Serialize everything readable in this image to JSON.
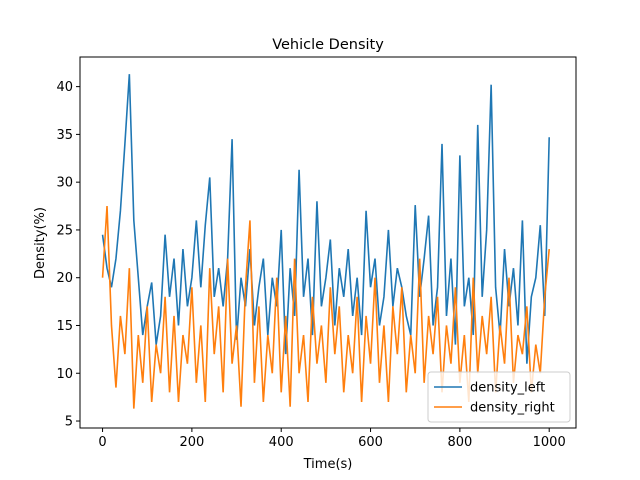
{
  "chart_data": {
    "type": "line",
    "title": "Vehicle Density",
    "xlabel": "Time(s)",
    "ylabel": "Density(%)",
    "x": [
      0,
      10,
      20,
      30,
      40,
      50,
      60,
      70,
      80,
      90,
      100,
      110,
      120,
      130,
      140,
      150,
      160,
      170,
      180,
      190,
      200,
      210,
      220,
      230,
      240,
      250,
      260,
      270,
      280,
      290,
      300,
      310,
      320,
      330,
      340,
      350,
      360,
      370,
      380,
      390,
      400,
      410,
      420,
      430,
      440,
      450,
      460,
      470,
      480,
      490,
      500,
      510,
      520,
      530,
      540,
      550,
      560,
      570,
      580,
      590,
      600,
      610,
      620,
      630,
      640,
      650,
      660,
      670,
      680,
      690,
      700,
      710,
      720,
      730,
      740,
      750,
      760,
      770,
      780,
      790,
      800,
      810,
      820,
      830,
      840,
      850,
      860,
      870,
      880,
      890,
      900,
      910,
      920,
      930,
      940,
      950,
      960,
      970,
      980,
      990,
      1000
    ],
    "series": [
      {
        "name": "density_left",
        "color": "#1f77b4",
        "values": [
          24.5,
          21,
          19,
          22,
          27,
          34,
          41.3,
          26,
          20,
          14,
          17,
          19.5,
          13,
          16,
          24.5,
          18,
          22,
          15,
          23,
          17,
          20,
          26,
          19,
          25.5,
          30.5,
          18,
          21,
          17,
          22,
          34.5,
          13.5,
          20,
          17,
          23,
          15,
          19,
          22,
          14,
          20,
          17,
          25,
          12,
          21,
          16,
          31.3,
          18,
          22,
          14,
          28,
          17,
          20,
          24,
          15,
          21,
          18,
          23,
          16,
          20,
          14,
          27,
          19,
          22,
          15,
          18,
          25,
          17,
          21,
          19,
          16,
          14,
          27.6,
          18,
          22,
          26.5,
          15,
          19,
          34,
          16,
          22,
          13,
          32.8,
          17,
          20,
          14,
          36,
          18,
          25,
          40.2,
          19,
          14,
          23,
          17,
          21,
          15,
          26,
          11,
          18,
          20,
          25.5,
          16,
          34.7
        ]
      },
      {
        "name": "density_right",
        "color": "#ff7f0e",
        "values": [
          20,
          27.5,
          15,
          8.5,
          16,
          12,
          21,
          6.3,
          14,
          9,
          17,
          7,
          13,
          10,
          18,
          8,
          16,
          7,
          14,
          11,
          19,
          9,
          15,
          7,
          21,
          12,
          17,
          8,
          22,
          11,
          15,
          6.5,
          19,
          26,
          9,
          17,
          7,
          14,
          10,
          20,
          8,
          16,
          6.5,
          22,
          10,
          14,
          7,
          18,
          11,
          15,
          9,
          19,
          12,
          17,
          8,
          14,
          10,
          18,
          7,
          16,
          11,
          20,
          9,
          15,
          7,
          17,
          12,
          19,
          8,
          14,
          10,
          22,
          9,
          16,
          12,
          18,
          8,
          15,
          11,
          19,
          9,
          14,
          7,
          20,
          10,
          16,
          12,
          18,
          8,
          15,
          11,
          20,
          9,
          14,
          12,
          17,
          8,
          13,
          10,
          18,
          23
        ]
      }
    ],
    "xlim": [
      -50.5,
      1060
    ],
    "ylim": [
      4.27,
      43.1
    ],
    "xticks": [
      0,
      200,
      400,
      600,
      800,
      1000
    ],
    "yticks": [
      5,
      10,
      15,
      20,
      25,
      30,
      35,
      40
    ],
    "legend": "lower right"
  }
}
